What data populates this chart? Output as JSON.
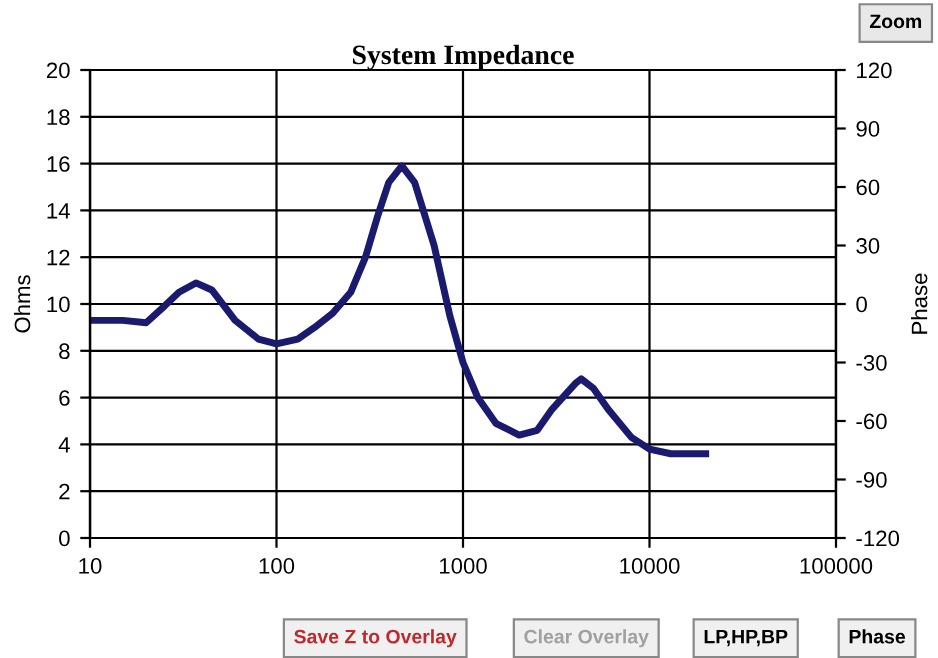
{
  "chart_data": {
    "type": "line",
    "title": "System Impedance",
    "ylabel": "Ohms",
    "y2label": "Phase",
    "x": [
      10,
      15,
      20,
      25,
      30,
      37,
      45,
      60,
      80,
      100,
      130,
      160,
      200,
      250,
      300,
      350,
      400,
      470,
      550,
      700,
      850,
      1000,
      1200,
      1500,
      2000,
      2500,
      3000,
      4000,
      4300,
      5000,
      6000,
      8000,
      10000,
      13000,
      20000
    ],
    "series": [
      {
        "color": "#1a1a6e",
        "values": [
          9.3,
          9.3,
          9.2,
          9.9,
          10.5,
          10.9,
          10.6,
          9.3,
          8.5,
          8.3,
          8.5,
          9.0,
          9.6,
          10.5,
          12.0,
          13.8,
          15.2,
          15.9,
          15.2,
          12.5,
          9.5,
          7.5,
          6.0,
          4.9,
          4.4,
          4.6,
          5.5,
          6.6,
          6.8,
          6.4,
          5.5,
          4.3,
          3.8,
          3.6,
          3.6
        ]
      }
    ],
    "log": "x",
    "xlim": [
      10,
      100000
    ],
    "xticks": [
      10,
      100,
      1000,
      10000,
      100000
    ],
    "ylim": [
      0,
      20
    ],
    "yticks": [
      0,
      2,
      4,
      6,
      8,
      10,
      12,
      14,
      16,
      18,
      20
    ],
    "y2lim": [
      -120,
      120
    ],
    "y2ticks": [
      -120,
      -90,
      -60,
      -30,
      0,
      30,
      60,
      90,
      120
    ],
    "grid": true,
    "legend": false,
    "marker": "none",
    "line_style": "solid",
    "annotations": [
      "Zoom",
      "Save Z to Overlay",
      "Clear Overlay",
      "LP,HP,BP",
      "Phase"
    ]
  }
}
